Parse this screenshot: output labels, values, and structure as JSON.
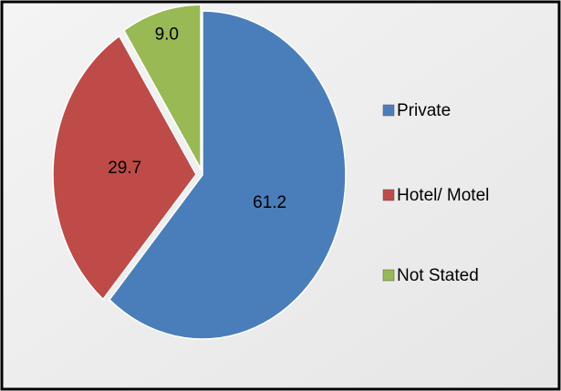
{
  "chart_data": {
    "type": "pie",
    "categories": [
      "Private",
      "Hotel/ Motel",
      "Not Stated"
    ],
    "values": [
      61.2,
      29.7,
      9.0
    ],
    "value_labels": [
      "61.2",
      "29.7",
      "9.0"
    ],
    "colors": [
      "#4a7ebb",
      "#be4b48",
      "#98b954"
    ],
    "legend": "right"
  }
}
